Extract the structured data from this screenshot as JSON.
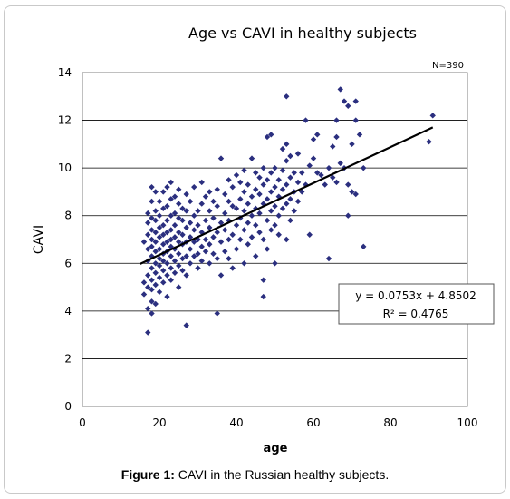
{
  "figure": {
    "caption_label": "Figure 1:",
    "caption_text": " CAVI in the Russian healthy subjects."
  },
  "chart_data": {
    "type": "scatter",
    "title": "Age vs CAVI in healthy subjects",
    "annotation": "N=390",
    "xlabel": "age",
    "ylabel": "CAVI",
    "xlim": [
      0,
      100
    ],
    "ylim": [
      0,
      14
    ],
    "xticks": [
      "0",
      "20",
      "40",
      "60",
      "80",
      "100"
    ],
    "yticks": [
      "0",
      "2",
      "4",
      "6",
      "8",
      "10",
      "12",
      "14"
    ],
    "grid": "horizontal",
    "marker_color": "#2b2f7f",
    "trendline": {
      "slope": 0.0753,
      "intercept": 4.8502,
      "x_range": [
        15,
        91
      ],
      "equation": "y = 0.0753x + 4.8502",
      "r_squared": "R² = 0.4765"
    },
    "points": [
      [
        16,
        6.9
      ],
      [
        16,
        5.2
      ],
      [
        16,
        4.7
      ],
      [
        17,
        3.1
      ],
      [
        17,
        4.1
      ],
      [
        17,
        5.0
      ],
      [
        17,
        5.5
      ],
      [
        17,
        6.1
      ],
      [
        17,
        6.6
      ],
      [
        17,
        7.2
      ],
      [
        17,
        7.7
      ],
      [
        17,
        8.1
      ],
      [
        18,
        3.9
      ],
      [
        18,
        4.4
      ],
      [
        18,
        4.9
      ],
      [
        18,
        5.3
      ],
      [
        18,
        5.8
      ],
      [
        18,
        6.3
      ],
      [
        18,
        6.7
      ],
      [
        18,
        7.0
      ],
      [
        18,
        7.4
      ],
      [
        18,
        7.9
      ],
      [
        18,
        8.6
      ],
      [
        18,
        9.2
      ],
      [
        19,
        4.3
      ],
      [
        19,
        5.1
      ],
      [
        19,
        5.6
      ],
      [
        19,
        6.0
      ],
      [
        19,
        6.5
      ],
      [
        19,
        6.9
      ],
      [
        19,
        7.3
      ],
      [
        19,
        7.8
      ],
      [
        19,
        8.2
      ],
      [
        19,
        9.0
      ],
      [
        20,
        4.8
      ],
      [
        20,
        5.4
      ],
      [
        20,
        5.9
      ],
      [
        20,
        6.2
      ],
      [
        20,
        6.6
      ],
      [
        20,
        7.1
      ],
      [
        20,
        7.5
      ],
      [
        20,
        8.0
      ],
      [
        20,
        8.6
      ],
      [
        21,
        5.2
      ],
      [
        21,
        5.7
      ],
      [
        21,
        6.1
      ],
      [
        21,
        6.4
      ],
      [
        21,
        6.8
      ],
      [
        21,
        7.2
      ],
      [
        21,
        7.6
      ],
      [
        21,
        8.3
      ],
      [
        21,
        9.0
      ],
      [
        22,
        4.6
      ],
      [
        22,
        5.5
      ],
      [
        22,
        6.0
      ],
      [
        22,
        6.5
      ],
      [
        22,
        6.9
      ],
      [
        22,
        7.3
      ],
      [
        22,
        7.8
      ],
      [
        22,
        8.4
      ],
      [
        22,
        9.2
      ],
      [
        23,
        5.3
      ],
      [
        23,
        5.8
      ],
      [
        23,
        6.3
      ],
      [
        23,
        6.7
      ],
      [
        23,
        7.0
      ],
      [
        23,
        7.4
      ],
      [
        23,
        8.0
      ],
      [
        23,
        8.7
      ],
      [
        23,
        9.4
      ],
      [
        24,
        5.6
      ],
      [
        24,
        6.1
      ],
      [
        24,
        6.6
      ],
      [
        24,
        7.1
      ],
      [
        24,
        7.6
      ],
      [
        24,
        8.1
      ],
      [
        24,
        8.8
      ],
      [
        25,
        5.0
      ],
      [
        25,
        5.9
      ],
      [
        25,
        6.4
      ],
      [
        25,
        6.9
      ],
      [
        25,
        7.3
      ],
      [
        25,
        7.9
      ],
      [
        25,
        8.5
      ],
      [
        25,
        9.1
      ],
      [
        26,
        5.7
      ],
      [
        26,
        6.2
      ],
      [
        26,
        6.8
      ],
      [
        26,
        7.2
      ],
      [
        26,
        7.8
      ],
      [
        26,
        8.3
      ],
      [
        27,
        3.4
      ],
      [
        27,
        5.5
      ],
      [
        27,
        6.3
      ],
      [
        27,
        6.9
      ],
      [
        27,
        7.5
      ],
      [
        27,
        8.2
      ],
      [
        27,
        8.9
      ],
      [
        28,
        6.0
      ],
      [
        28,
        6.6
      ],
      [
        28,
        7.1
      ],
      [
        28,
        7.7
      ],
      [
        28,
        8.6
      ],
      [
        29,
        6.3
      ],
      [
        29,
        6.9
      ],
      [
        29,
        7.4
      ],
      [
        29,
        8.0
      ],
      [
        29,
        9.2
      ],
      [
        30,
        5.8
      ],
      [
        30,
        6.4
      ],
      [
        30,
        7.0
      ],
      [
        30,
        7.6
      ],
      [
        30,
        8.2
      ],
      [
        31,
        6.1
      ],
      [
        31,
        6.7
      ],
      [
        31,
        7.3
      ],
      [
        31,
        8.5
      ],
      [
        31,
        9.4
      ],
      [
        32,
        6.5
      ],
      [
        32,
        7.0
      ],
      [
        32,
        7.8
      ],
      [
        32,
        8.8
      ],
      [
        33,
        6.0
      ],
      [
        33,
        6.8
      ],
      [
        33,
        7.5
      ],
      [
        33,
        8.2
      ],
      [
        33,
        9.0
      ],
      [
        34,
        6.4
      ],
      [
        34,
        7.1
      ],
      [
        34,
        7.9
      ],
      [
        34,
        8.6
      ],
      [
        35,
        3.9
      ],
      [
        35,
        6.2
      ],
      [
        35,
        7.3
      ],
      [
        35,
        8.4
      ],
      [
        35,
        9.1
      ],
      [
        36,
        5.5
      ],
      [
        36,
        6.9
      ],
      [
        36,
        7.7
      ],
      [
        36,
        10.4
      ],
      [
        37,
        6.5
      ],
      [
        37,
        7.4
      ],
      [
        37,
        8.1
      ],
      [
        37,
        8.9
      ],
      [
        38,
        6.2
      ],
      [
        38,
        7.0
      ],
      [
        38,
        7.8
      ],
      [
        38,
        8.6
      ],
      [
        38,
        9.5
      ],
      [
        39,
        5.8
      ],
      [
        39,
        7.2
      ],
      [
        39,
        8.4
      ],
      [
        39,
        9.2
      ],
      [
        40,
        6.6
      ],
      [
        40,
        7.6
      ],
      [
        40,
        8.3
      ],
      [
        40,
        9.7
      ],
      [
        41,
        7.0
      ],
      [
        41,
        7.9
      ],
      [
        41,
        8.7
      ],
      [
        41,
        9.4
      ],
      [
        42,
        6.0
      ],
      [
        42,
        7.4
      ],
      [
        42,
        8.2
      ],
      [
        42,
        9.0
      ],
      [
        42,
        9.9
      ],
      [
        43,
        6.8
      ],
      [
        43,
        7.7
      ],
      [
        43,
        8.5
      ],
      [
        43,
        9.3
      ],
      [
        44,
        7.1
      ],
      [
        44,
        8.0
      ],
      [
        44,
        8.8
      ],
      [
        44,
        10.4
      ],
      [
        45,
        6.3
      ],
      [
        45,
        7.6
      ],
      [
        45,
        8.3
      ],
      [
        45,
        9.1
      ],
      [
        45,
        9.8
      ],
      [
        46,
        7.3
      ],
      [
        46,
        8.1
      ],
      [
        46,
        8.9
      ],
      [
        46,
        9.6
      ],
      [
        47,
        4.6
      ],
      [
        47,
        5.3
      ],
      [
        47,
        7.0
      ],
      [
        47,
        8.5
      ],
      [
        47,
        9.3
      ],
      [
        47,
        10.0
      ],
      [
        48,
        6.6
      ],
      [
        48,
        7.8
      ],
      [
        48,
        8.7
      ],
      [
        48,
        9.5
      ],
      [
        48,
        11.3
      ],
      [
        49,
        7.4
      ],
      [
        49,
        8.2
      ],
      [
        49,
        9.0
      ],
      [
        49,
        9.8
      ],
      [
        49,
        11.4
      ],
      [
        50,
        6.0
      ],
      [
        50,
        7.6
      ],
      [
        50,
        8.4
      ],
      [
        50,
        9.2
      ],
      [
        50,
        10.0
      ],
      [
        51,
        7.2
      ],
      [
        51,
        8.0
      ],
      [
        51,
        8.8
      ],
      [
        51,
        9.5
      ],
      [
        52,
        8.3
      ],
      [
        52,
        9.1
      ],
      [
        52,
        9.9
      ],
      [
        52,
        10.8
      ],
      [
        53,
        7.0
      ],
      [
        53,
        8.5
      ],
      [
        53,
        9.3
      ],
      [
        53,
        10.3
      ],
      [
        53,
        11.0
      ],
      [
        53,
        13.0
      ],
      [
        54,
        7.8
      ],
      [
        54,
        8.7
      ],
      [
        54,
        9.6
      ],
      [
        54,
        10.5
      ],
      [
        55,
        8.2
      ],
      [
        55,
        9.0
      ],
      [
        55,
        9.8
      ],
      [
        56,
        8.6
      ],
      [
        56,
        9.4
      ],
      [
        56,
        10.6
      ],
      [
        57,
        9.0
      ],
      [
        57,
        9.8
      ],
      [
        58,
        12.0
      ],
      [
        58,
        9.3
      ],
      [
        59,
        7.2
      ],
      [
        59,
        10.1
      ],
      [
        60,
        11.2
      ],
      [
        60,
        10.4
      ],
      [
        61,
        9.8
      ],
      [
        61,
        11.4
      ],
      [
        62,
        9.7
      ],
      [
        63,
        9.3
      ],
      [
        64,
        6.2
      ],
      [
        64,
        10.0
      ],
      [
        65,
        9.6
      ],
      [
        65,
        10.9
      ],
      [
        66,
        11.3
      ],
      [
        66,
        12.0
      ],
      [
        66,
        9.4
      ],
      [
        67,
        13.3
      ],
      [
        67,
        10.2
      ],
      [
        68,
        12.8
      ],
      [
        68,
        10.0
      ],
      [
        69,
        12.6
      ],
      [
        69,
        8.0
      ],
      [
        69,
        9.3
      ],
      [
        70,
        9.0
      ],
      [
        70,
        11.0
      ],
      [
        71,
        12.8
      ],
      [
        71,
        12.0
      ],
      [
        71,
        8.9
      ],
      [
        72,
        11.4
      ],
      [
        73,
        6.7
      ],
      [
        73,
        10.0
      ],
      [
        90,
        11.1
      ],
      [
        91,
        12.2
      ]
    ]
  }
}
